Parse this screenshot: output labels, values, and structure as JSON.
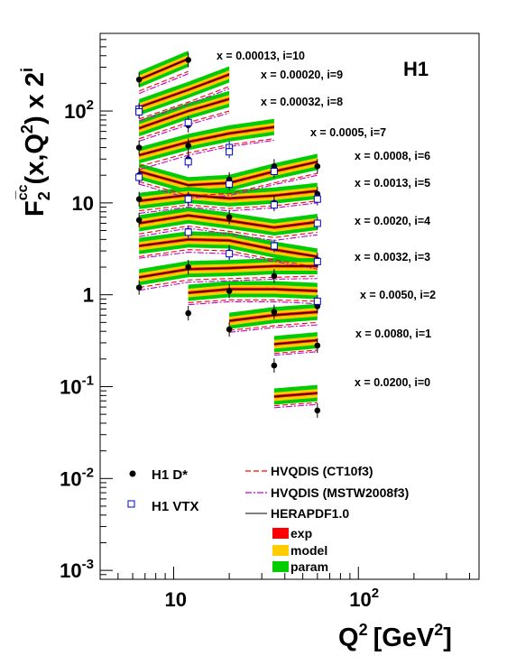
{
  "chart_data": {
    "type": "line",
    "experiment_label": "H1",
    "xaxis": {
      "label": "Q",
      "label_sup": "2",
      "label_rest": "[GeV",
      "label_rest_sup": "2",
      "label_close": "]",
      "scale": "log",
      "range": [
        4,
        450
      ],
      "tick_labels": [
        {
          "value": 10,
          "text": "10"
        },
        {
          "value": 100,
          "text": "10",
          "sup": "2"
        }
      ]
    },
    "yaxis": {
      "label_main": "F",
      "label_sub": "2",
      "label_sup": "c̅c",
      "label_rest": "(x,Q",
      "label_rest_sup": "2",
      "label_rest2": ") x 2",
      "label_rest2_sup": "i",
      "scale": "log",
      "range": [
        0.0008,
        700
      ],
      "tick_labels": [
        {
          "value": 0.001,
          "base": "10",
          "sup": "-3"
        },
        {
          "value": 0.01,
          "base": "10",
          "sup": "-2"
        },
        {
          "value": 0.1,
          "base": "10",
          "sup": "-1"
        },
        {
          "value": 1,
          "base": "1",
          "sup": ""
        },
        {
          "value": 10,
          "base": "10",
          "sup": ""
        },
        {
          "value": 100,
          "base": "10",
          "sup": "2"
        }
      ]
    },
    "legend": {
      "markers": [
        {
          "name": "H1 D*",
          "style": "filled-circle",
          "color": "#000000"
        },
        {
          "name": "H1 VTX",
          "style": "open-square",
          "color": "#0000cc"
        }
      ],
      "lines": [
        {
          "name": "HVQDIS (CT10f3)",
          "color": "#ff0000",
          "dash": "6,3"
        },
        {
          "name": "HVQDIS (MSTW2008f3)",
          "color": "#cc00cc",
          "dash": "7,2,2,2"
        },
        {
          "name": "HERAPDF1.0",
          "color": "#000000",
          "dash": ""
        }
      ],
      "bands": [
        {
          "name": "exp",
          "color": "#ff0000"
        },
        {
          "name": "model",
          "color": "#ffcc00"
        },
        {
          "name": "param",
          "color": "#00cc00"
        }
      ]
    },
    "series": [
      {
        "label": "x = 0.00013, i=10",
        "qmin": 6.5,
        "qmax": 12,
        "central": [
          220,
          370
        ],
        "ct10": [
          165,
          270
        ],
        "mstw": [
          155,
          255
        ],
        "dstar": [
          {
            "q": 6.5,
            "y": 220
          },
          {
            "q": 12,
            "y": 360
          }
        ],
        "vtx": [
          {
            "q": 6.5,
            "y": 105
          }
        ]
      },
      {
        "label": "x = 0.00020, i=9",
        "qmin": 6.5,
        "qmax": 20,
        "central": [
          110,
          170,
          250
        ],
        "ct10": [
          82,
          125,
          185
        ],
        "mstw": [
          78,
          118,
          175
        ],
        "dstar": [
          {
            "q": 6.5,
            "y": 100
          },
          {
            "q": 12,
            "y": 70
          }
        ],
        "vtx": [
          {
            "q": 6.5,
            "y": 98
          },
          {
            "q": 12,
            "y": 75
          }
        ]
      },
      {
        "label": "x = 0.00032, i=8",
        "qmin": 6.5,
        "qmax": 20,
        "central": [
          65,
          100,
          135
        ],
        "ct10": [
          50,
          75,
          100
        ],
        "mstw": [
          47,
          71,
          95
        ],
        "dstar": [
          {
            "q": 6.5,
            "y": 40
          },
          {
            "q": 12,
            "y": 42
          }
        ],
        "vtx": [
          {
            "q": 20,
            "y": 40
          }
        ]
      },
      {
        "label": "x = 0.0005, i=7",
        "qmin": 6.5,
        "qmax": 35,
        "central": [
          33,
          46,
          57,
          67
        ],
        "ct10": [
          25,
          35,
          43,
          50
        ],
        "mstw": [
          23,
          33,
          41,
          48
        ],
        "dstar": [
          {
            "q": 6.5,
            "y": 19
          },
          {
            "q": 12,
            "y": 30
          },
          {
            "q": 20,
            "y": 17
          }
        ],
        "vtx": [
          {
            "q": 12,
            "y": 28
          },
          {
            "q": 20,
            "y": 36
          }
        ]
      },
      {
        "label": "x = 0.0008, i=6",
        "qmin": 6.5,
        "qmax": 60,
        "central": [
          22,
          15.6,
          16.5,
          22,
          28
        ],
        "ct10": [
          17,
          12,
          12.6,
          16.5,
          21
        ],
        "mstw": [
          16,
          11.3,
          12,
          15.8,
          20
        ],
        "dstar": [
          {
            "q": 6.5,
            "y": 20
          },
          {
            "q": 20,
            "y": 18
          },
          {
            "q": 35,
            "y": 25
          },
          {
            "q": 60,
            "y": 25
          }
        ],
        "vtx": [
          {
            "q": 6.5,
            "y": 19
          },
          {
            "q": 20,
            "y": 16
          },
          {
            "q": 35,
            "y": 22
          }
        ]
      },
      {
        "label": "x = 0.0013, i=5",
        "qmin": 6.5,
        "qmax": 60,
        "central": [
          10.5,
          12.2,
          11.2,
          12,
          13.5
        ],
        "ct10": [
          8.2,
          9.5,
          8.7,
          9.3,
          10.5
        ],
        "mstw": [
          7.7,
          9,
          8.2,
          8.8,
          10
        ],
        "dstar": [
          {
            "q": 6.5,
            "y": 11
          },
          {
            "q": 12,
            "y": 11
          },
          {
            "q": 35,
            "y": 10
          },
          {
            "q": 60,
            "y": 12.5
          }
        ],
        "vtx": [
          {
            "q": 12,
            "y": 11
          },
          {
            "q": 35,
            "y": 9.5
          },
          {
            "q": 60,
            "y": 11
          }
        ]
      },
      {
        "label": "x = 0.0020, i=4",
        "qmin": 6.5,
        "qmax": 60,
        "central": [
          6,
          7.3,
          6.4,
          5.4,
          6.2
        ],
        "ct10": [
          4.6,
          5.6,
          4.9,
          4.2,
          4.8
        ],
        "mstw": [
          4.3,
          5.3,
          4.6,
          3.9,
          4.5
        ],
        "dstar": [
          {
            "q": 6.5,
            "y": 6.5
          },
          {
            "q": 20,
            "y": 7
          }
        ],
        "vtx": [
          {
            "q": 12,
            "y": 4.8
          },
          {
            "q": 60,
            "y": 6
          }
        ]
      },
      {
        "label": "x = 0.0032, i=3",
        "qmin": 6.5,
        "qmax": 60,
        "central": [
          3.4,
          4.0,
          3.9,
          3.1,
          2.6
        ],
        "ct10": [
          2.6,
          3.1,
          3.0,
          2.4,
          2.0
        ],
        "mstw": [
          2.5,
          2.9,
          2.8,
          2.3,
          1.9
        ],
        "dstar": [
          {
            "q": 20,
            "y": 2.9
          },
          {
            "q": 60,
            "y": 2.4
          }
        ],
        "vtx": [
          {
            "q": 20,
            "y": 2.8
          },
          {
            "q": 35,
            "y": 3.4
          },
          {
            "q": 60,
            "y": 2.3
          }
        ]
      },
      {
        "label": "x = 0.0050, i=2",
        "qmin": 6.5,
        "qmax": 60,
        "central": [
          1.55,
          1.9,
          1.95,
          2.05,
          2.05
        ],
        "ct10": [
          1.2,
          1.45,
          1.5,
          1.55,
          1.6
        ],
        "mstw": [
          1.12,
          1.37,
          1.42,
          1.48,
          1.5
        ],
        "dstar": [
          {
            "q": 6.5,
            "y": 1.2
          },
          {
            "q": 12,
            "y": 2.0
          },
          {
            "q": 35,
            "y": 1.6
          }
        ],
        "vtx": []
      },
      {
        "label": "x = 0.0080, i=1",
        "qmin": 12,
        "qmax": 60,
        "central": [
          1.05,
          1.15,
          1.15,
          1.1
        ],
        "ct10": [
          0.82,
          0.88,
          0.88,
          0.85
        ],
        "mstw": [
          0.78,
          0.84,
          0.84,
          0.8
        ],
        "dstar": [
          {
            "q": 12,
            "y": 0.63
          },
          {
            "q": 20,
            "y": 1.1
          },
          {
            "q": 35,
            "y": 0.65
          },
          {
            "q": 60,
            "y": 0.75
          }
        ],
        "vtx": [
          {
            "q": 60,
            "y": 0.85
          }
        ]
      },
      {
        "label": "x = 0.0200, i=0",
        "qmin": 20,
        "qmax": 60,
        "central": [
          0.52,
          0.6,
          0.65
        ],
        "ct10": [
          0.41,
          0.46,
          0.5
        ],
        "mstw": [
          0.39,
          0.44,
          0.47
        ],
        "dstar": [
          {
            "q": 20,
            "y": 0.42
          }
        ],
        "vtx": []
      },
      {
        "label": "",
        "qmin": 35,
        "qmax": 60,
        "central": [
          0.29,
          0.32
        ],
        "ct10": [
          0.23,
          0.25
        ],
        "mstw": [
          0.22,
          0.24
        ],
        "dstar": [
          {
            "q": 35,
            "y": 0.17
          },
          {
            "q": 60,
            "y": 0.28
          }
        ],
        "vtx": []
      },
      {
        "label": "",
        "qmin": 35,
        "qmax": 60,
        "central": [
          0.078,
          0.085
        ],
        "ct10": [
          0.062,
          0.067
        ],
        "mstw": [
          0.059,
          0.064
        ],
        "dstar": [
          {
            "q": 60,
            "y": 0.055
          }
        ],
        "vtx": []
      }
    ]
  }
}
